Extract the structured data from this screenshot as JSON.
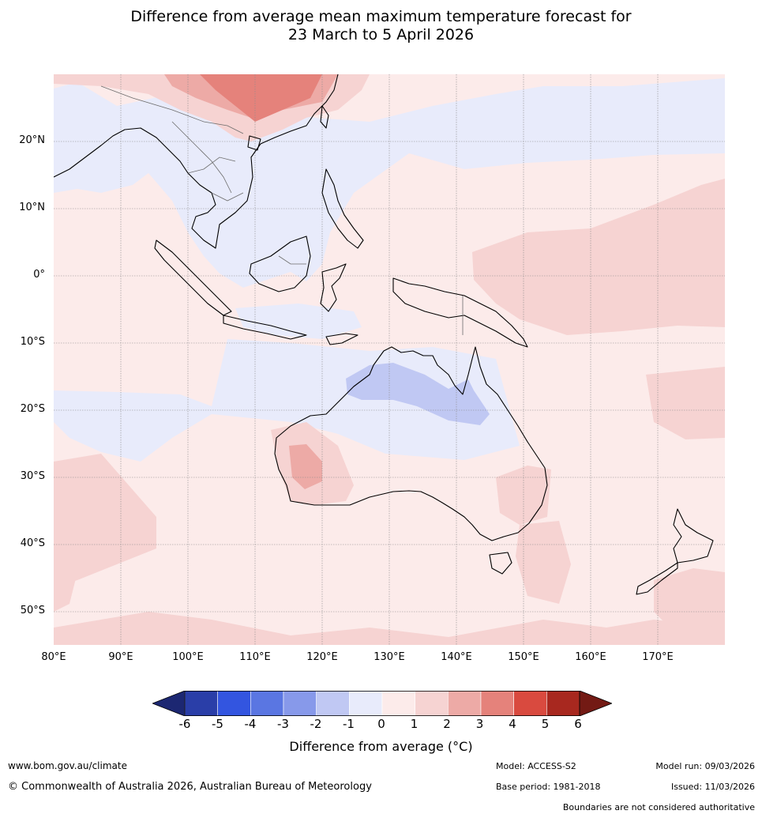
{
  "title": {
    "line1": "Difference from average mean maximum temperature forecast for",
    "line2": "23 March to 5 April 2026"
  },
  "map": {
    "lat_labels": [
      "20°N",
      "10°N",
      "0°",
      "10°S",
      "20°S",
      "30°S",
      "40°S",
      "50°S"
    ],
    "lon_labels": [
      "80°E",
      "90°E",
      "100°E",
      "110°E",
      "120°E",
      "130°E",
      "140°E",
      "150°E",
      "160°E",
      "170°E"
    ]
  },
  "colorbar": {
    "ticks": [
      "-6",
      "-5",
      "-4",
      "-3",
      "-2",
      "-1",
      "0",
      "1",
      "2",
      "3",
      "4",
      "5",
      "6"
    ],
    "colors": [
      "#2a3ea8",
      "#3355e0",
      "#5a76e2",
      "#8799ea",
      "#c0c8f3",
      "#e8ebfb",
      "#fcebea",
      "#f6d3d2",
      "#edaaa6",
      "#e5827b",
      "#d94a3f",
      "#a8281f"
    ],
    "under_color": "#1c2772",
    "over_color": "#731a14",
    "label": "Difference from average (°C)"
  },
  "footer": {
    "website": "www.bom.gov.au/climate",
    "copyright": "© Commonwealth of Australia 2026, Australian Bureau of Meteorology",
    "model": "Model: ACCESS-S2",
    "base_period": "Base period: 1981-2018",
    "model_run": "Model run: 09/03/2026",
    "issued": "Issued: 11/03/2026",
    "disclaimer": "Boundaries are not considered authoritative"
  }
}
